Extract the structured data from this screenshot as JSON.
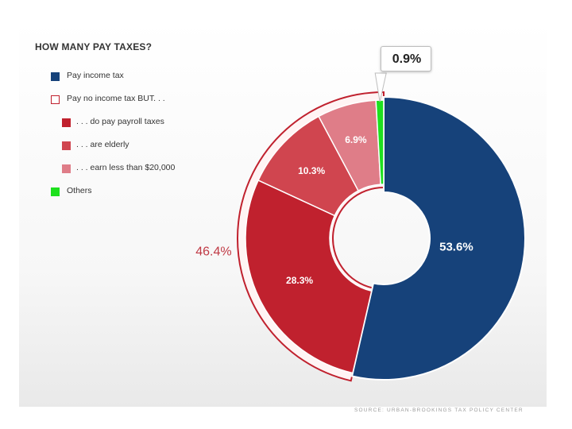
{
  "colors": {
    "pay_income_tax": "#16427a",
    "payroll": "#c0212e",
    "elderly": "#d0454f",
    "low_earners": "#df7d88",
    "others": "#1ee01e",
    "group_label": "#c03a45"
  },
  "title": "HOW MANY PAY TAXES?",
  "legend": [
    {
      "label": "Pay income tax",
      "color": "#16427a",
      "level": "top",
      "style": "solid"
    },
    {
      "label": "Pay no income tax BUT. . .",
      "color": "#c0212e",
      "level": "top",
      "style": "outline"
    },
    {
      "label": ". . . do pay payroll taxes",
      "color": "#c0212e",
      "level": "sub",
      "style": "solid"
    },
    {
      "label": ". . . are elderly",
      "color": "#d0454f",
      "level": "sub",
      "style": "solid"
    },
    {
      "label": ". . . earn less than $20,000",
      "color": "#df7d88",
      "level": "sub",
      "style": "solid"
    },
    {
      "label": "Others",
      "color": "#1ee01e",
      "level": "top",
      "style": "solid"
    }
  ],
  "chart_data": {
    "type": "pie",
    "title": "HOW MANY PAY TAXES?",
    "series": [
      {
        "name": "Pay income tax",
        "value": 53.6,
        "label": "53.6%",
        "color": "#16427a"
      },
      {
        "name": ". . . do pay payroll taxes",
        "value": 28.3,
        "label": "28.3%",
        "color": "#c0212e"
      },
      {
        "name": ". . . are elderly",
        "value": 10.3,
        "label": "10.3%",
        "color": "#d0454f"
      },
      {
        "name": ". . . earn less than $20,000",
        "value": 6.9,
        "label": "6.9%",
        "color": "#df7d88"
      },
      {
        "name": "Others",
        "value": 0.9,
        "label": "0.9%",
        "color": "#1ee01e"
      }
    ],
    "group_total_label": "46.4%",
    "callout_label": "0.9%",
    "donut": true
  },
  "footer": "SOURCE: URBAN-BROOKINGS TAX POLICY CENTER"
}
